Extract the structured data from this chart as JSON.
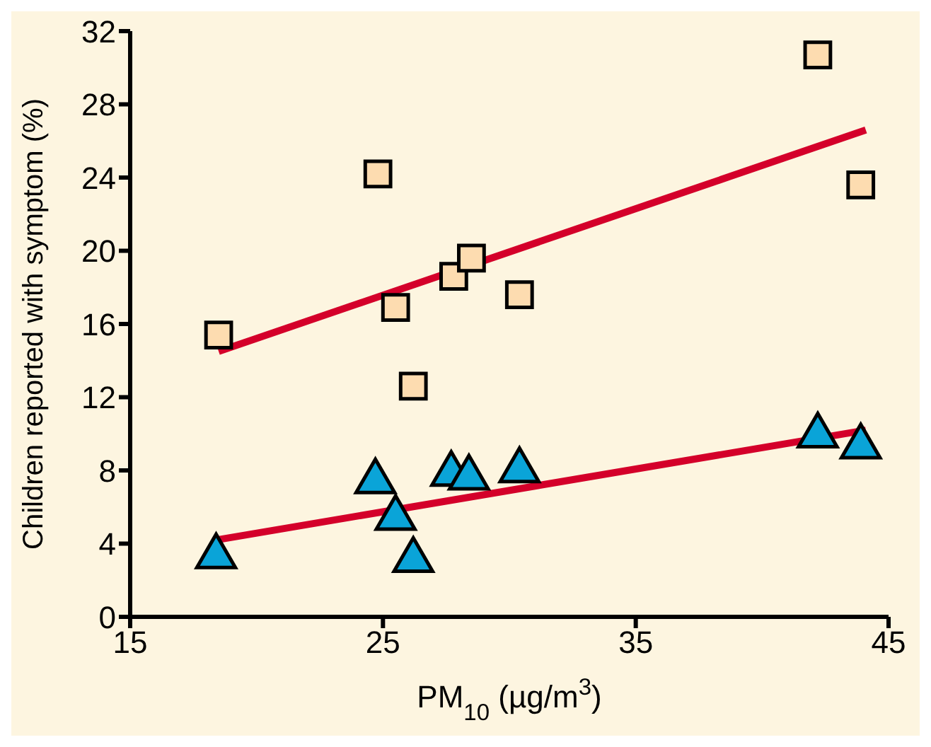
{
  "chart_data": {
    "type": "scatter",
    "xlabel": "PM$_{10}$ (µg/m$^{3}$)",
    "ylabel": "Children reported with symptom (%)",
    "xlim": [
      15,
      45
    ],
    "xticks": [
      15,
      25,
      35,
      45
    ],
    "ylim": [
      0,
      32
    ],
    "yticks": [
      0,
      4,
      8,
      12,
      16,
      20,
      24,
      28,
      32
    ],
    "grid": false,
    "legend": false,
    "series": [
      {
        "marker": "square",
        "color": "#fddcb0",
        "x": [
          18.5,
          24.8,
          25.5,
          26.2,
          27.8,
          28.5,
          30.4,
          42.2,
          43.9
        ],
        "values": [
          15.4,
          24.2,
          16.9,
          12.6,
          18.6,
          19.6,
          17.6,
          30.7,
          23.6
        ]
      },
      {
        "marker": "triangle",
        "color": "#0aa4d8",
        "x": [
          18.4,
          24.7,
          25.5,
          26.2,
          27.7,
          28.4,
          30.4,
          42.2,
          43.9
        ],
        "values": [
          3.3,
          7.4,
          5.4,
          3.1,
          7.8,
          7.6,
          8.0,
          9.9,
          9.3
        ]
      },
      {
        "type": "line",
        "color": "#d4002a",
        "x": [
          18.5,
          44.1
        ],
        "values": [
          14.5,
          26.6
        ]
      },
      {
        "type": "line",
        "color": "#d4002a",
        "x": [
          18.4,
          44.1
        ],
        "values": [
          4.2,
          10.2
        ]
      }
    ]
  }
}
